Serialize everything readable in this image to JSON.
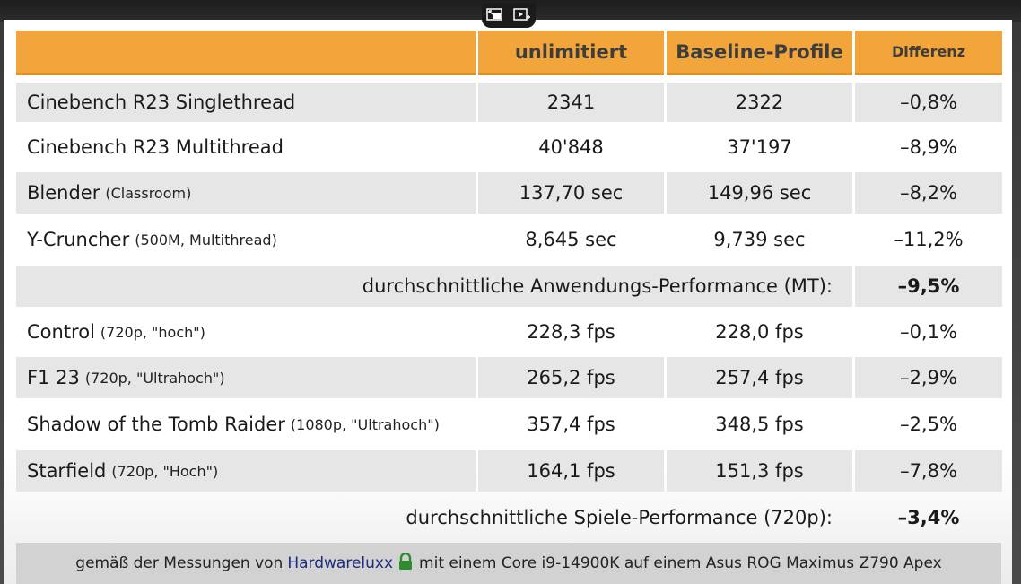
{
  "table": {
    "headers": {
      "unlimitiert": "unlimitiert",
      "baseline": "Baseline-Profile",
      "differenz": "Differenz"
    },
    "rows": [
      {
        "name": "Cinebench R23 Singlethread",
        "sub": "",
        "unlimitiert": "2341",
        "baseline": "2322",
        "diff": "–0,8%"
      },
      {
        "name": "Cinebench R23 Multithread",
        "sub": "",
        "unlimitiert": "40'848",
        "baseline": "37'197",
        "diff": "–8,9%"
      },
      {
        "name": "Blender",
        "sub": "(Classroom)",
        "unlimitiert": "137,70 sec",
        "baseline": "149,96 sec",
        "diff": "–8,2%"
      },
      {
        "name": "Y-Cruncher",
        "sub": "(500M, Multithread)",
        "unlimitiert": "8,645 sec",
        "baseline": "9,739 sec",
        "diff": "–11,2%"
      },
      {
        "name": "Control",
        "sub": "(720p, \"hoch\")",
        "unlimitiert": "228,3 fps",
        "baseline": "228,0 fps",
        "diff": "–0,1%"
      },
      {
        "name": "F1 23",
        "sub": "(720p, \"Ultrahoch\")",
        "unlimitiert": "265,2 fps",
        "baseline": "257,4 fps",
        "diff": "–2,9%"
      },
      {
        "name": "Shadow of the Tomb Raider",
        "sub": "(1080p, \"Ultrahoch\")",
        "unlimitiert": "357,4 fps",
        "baseline": "348,5 fps",
        "diff": "–2,5%"
      },
      {
        "name": "Starfield",
        "sub": "(720p, \"Hoch\")",
        "unlimitiert": "164,1 fps",
        "baseline": "151,3 fps",
        "diff": "–7,8%"
      }
    ],
    "summary_app": {
      "label": "durchschnittliche Anwendungs-Performance (MT):",
      "value": "–9,5%"
    },
    "summary_games": {
      "label": "durchschnittliche Spiele-Performance (720p):",
      "value": "–3,4%"
    }
  },
  "footer": {
    "prefix": "gemäß der Messungen von",
    "link": "Hardwareluxx",
    "suffix": "mit einem Core i9-14900K auf einem Asus ROG Maximus Z790 Apex"
  },
  "icons": {
    "lock": "lock-icon",
    "player_a": "miniplayer-icon",
    "player_b": "autoplay-icon"
  },
  "colors": {
    "header": "#f2a53a",
    "grey_row": "#e6e6e6",
    "link": "#1c2a80",
    "lock": "#2e8b2e"
  }
}
